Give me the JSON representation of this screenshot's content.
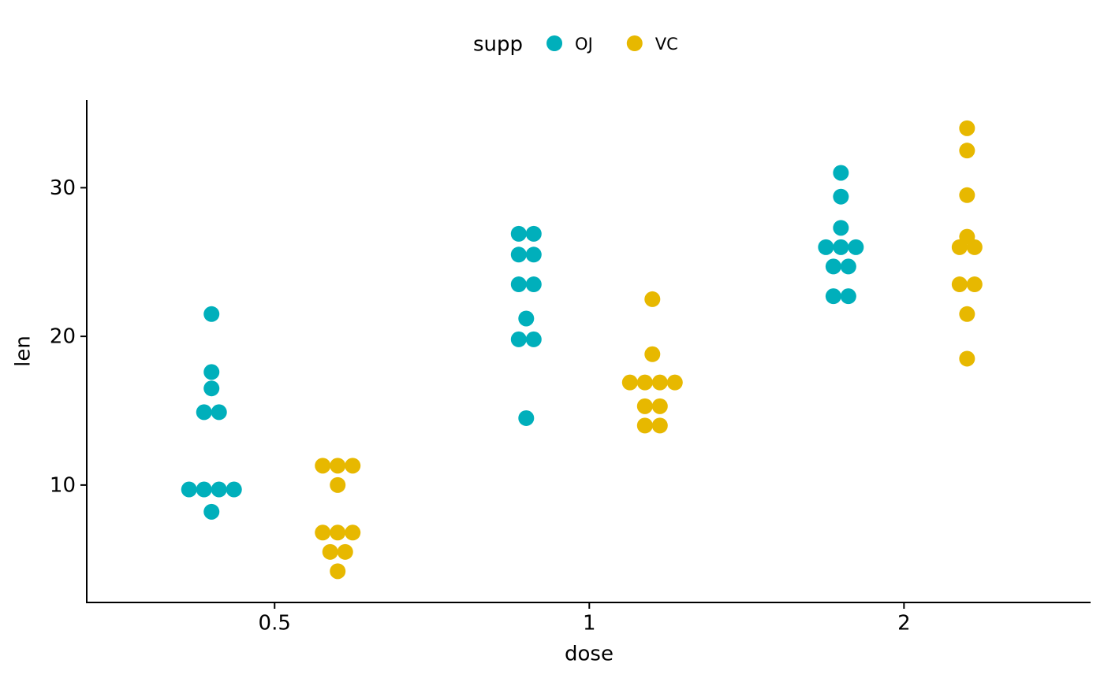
{
  "chart_data": {
    "type": "dotplot",
    "x_label": "dose",
    "y_label": "len",
    "categories": [
      "0.5",
      "1",
      "2"
    ],
    "legend_title": "supp",
    "series": [
      {
        "name": "OJ",
        "color": "#00AFBB",
        "values": [
          [
            21.5,
            17.6,
            16.5,
            14.9,
            14.9,
            9.7,
            9.7,
            9.7,
            9.7,
            8.2
          ],
          [
            26.9,
            26.9,
            25.5,
            25.5,
            23.5,
            23.5,
            21.2,
            19.8,
            19.8,
            14.5
          ],
          [
            31.0,
            29.4,
            27.3,
            26.0,
            26.0,
            26.0,
            24.7,
            24.7,
            22.7,
            22.7
          ]
        ]
      },
      {
        "name": "VC",
        "color": "#E7B800",
        "values": [
          [
            11.3,
            11.3,
            11.3,
            10.0,
            6.8,
            6.8,
            6.8,
            5.5,
            5.5,
            4.2
          ],
          [
            22.5,
            18.8,
            16.9,
            16.9,
            16.9,
            16.9,
            15.3,
            15.3,
            14.0,
            14.0
          ],
          [
            34.0,
            32.5,
            29.5,
            26.7,
            26.0,
            26.0,
            23.5,
            23.5,
            21.5,
            18.5
          ]
        ]
      }
    ],
    "ylim": [
      2.1,
      35.9
    ],
    "yticks": [
      10,
      20,
      30
    ],
    "grid": false,
    "legend_position": "top"
  }
}
